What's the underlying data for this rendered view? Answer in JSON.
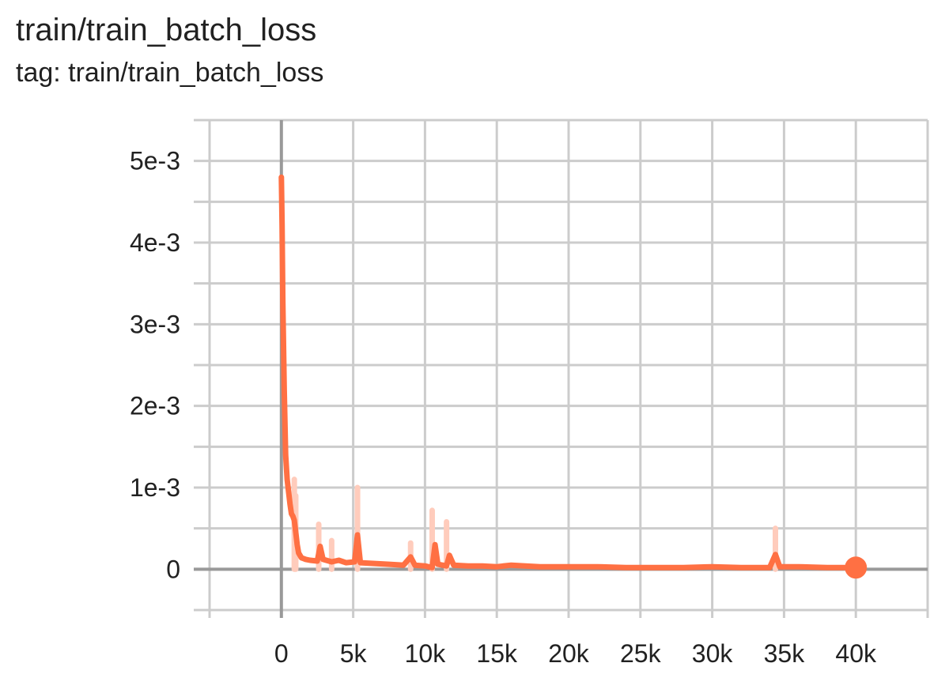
{
  "chart_data": {
    "type": "line",
    "title": "train/train_batch_loss",
    "subtitle": "tag: train/train_batch_loss",
    "xlabel": "",
    "ylabel": "",
    "x_ticks": [
      {
        "value": 0,
        "label": "0"
      },
      {
        "value": 5000,
        "label": "5k"
      },
      {
        "value": 10000,
        "label": "10k"
      },
      {
        "value": 15000,
        "label": "15k"
      },
      {
        "value": 20000,
        "label": "20k"
      },
      {
        "value": 25000,
        "label": "25k"
      },
      {
        "value": 30000,
        "label": "30k"
      },
      {
        "value": 35000,
        "label": "35k"
      },
      {
        "value": 40000,
        "label": "40k"
      }
    ],
    "y_ticks": [
      {
        "value": 0,
        "label": "0"
      },
      {
        "value": 0.001,
        "label": "1e-3"
      },
      {
        "value": 0.002,
        "label": "2e-3"
      },
      {
        "value": 0.003,
        "label": "3e-3"
      },
      {
        "value": 0.004,
        "label": "4e-3"
      },
      {
        "value": 0.005,
        "label": "5e-3"
      }
    ],
    "xlim": [
      -5000,
      45000
    ],
    "ylim": [
      -0.0005,
      0.0055
    ],
    "grid": true,
    "line_color": "#ff7043",
    "raw_color": "#ffccbc",
    "axis_color": "#999999",
    "grid_color": "#cccccc",
    "series": [
      {
        "smoothed": [
          [
            0,
            0.0048
          ],
          [
            50,
            0.0042
          ],
          [
            100,
            0.0033
          ],
          [
            200,
            0.0022
          ],
          [
            300,
            0.0014
          ],
          [
            400,
            0.0011
          ],
          [
            500,
            0.00095
          ],
          [
            600,
            0.0008
          ],
          [
            700,
            0.00068
          ],
          [
            800,
            0.00065
          ],
          [
            900,
            0.0006
          ],
          [
            1000,
            0.00045
          ],
          [
            1100,
            0.0003
          ],
          [
            1200,
            0.0002
          ],
          [
            1400,
            0.00014
          ],
          [
            1700,
            0.00012
          ],
          [
            2000,
            0.00011
          ],
          [
            2500,
            0.0001
          ],
          [
            2700,
            0.00028
          ],
          [
            2900,
            0.00012
          ],
          [
            3500,
            9e-05
          ],
          [
            4000,
            0.00011
          ],
          [
            4500,
            8e-05
          ],
          [
            5100,
            9e-05
          ],
          [
            5300,
            0.00042
          ],
          [
            5500,
            8e-05
          ],
          [
            6500,
            7e-05
          ],
          [
            7500,
            6e-05
          ],
          [
            8500,
            5e-05
          ],
          [
            9000,
            0.00015
          ],
          [
            9300,
            5e-05
          ],
          [
            10000,
            4e-05
          ],
          [
            10500,
            2e-05
          ],
          [
            10700,
            0.0003
          ],
          [
            10900,
            6e-05
          ],
          [
            11500,
            4e-05
          ],
          [
            11700,
            0.00017
          ],
          [
            12000,
            5e-05
          ],
          [
            13000,
            4e-05
          ],
          [
            14000,
            4e-05
          ],
          [
            15000,
            3e-05
          ],
          [
            16000,
            5e-05
          ],
          [
            17000,
            4e-05
          ],
          [
            18000,
            3e-05
          ],
          [
            20000,
            3e-05
          ],
          [
            22000,
            3e-05
          ],
          [
            24000,
            2e-05
          ],
          [
            26000,
            2e-05
          ],
          [
            28000,
            2e-05
          ],
          [
            30000,
            3e-05
          ],
          [
            32000,
            2e-05
          ],
          [
            34000,
            2e-05
          ],
          [
            34400,
            0.00018
          ],
          [
            34700,
            3e-05
          ],
          [
            36000,
            3e-05
          ],
          [
            38000,
            2e-05
          ],
          [
            40000,
            2e-05
          ]
        ],
        "raw_spikes": [
          [
            900,
            0.0011
          ],
          [
            1000,
            0.0009
          ],
          [
            2600,
            0.00055
          ],
          [
            3500,
            0.00035
          ],
          [
            5300,
            0.001
          ],
          [
            9000,
            0.00032
          ],
          [
            10500,
            0.00072
          ],
          [
            11500,
            0.00058
          ],
          [
            34400,
            0.0005
          ]
        ],
        "last_point": [
          40000,
          2e-05
        ]
      }
    ]
  }
}
